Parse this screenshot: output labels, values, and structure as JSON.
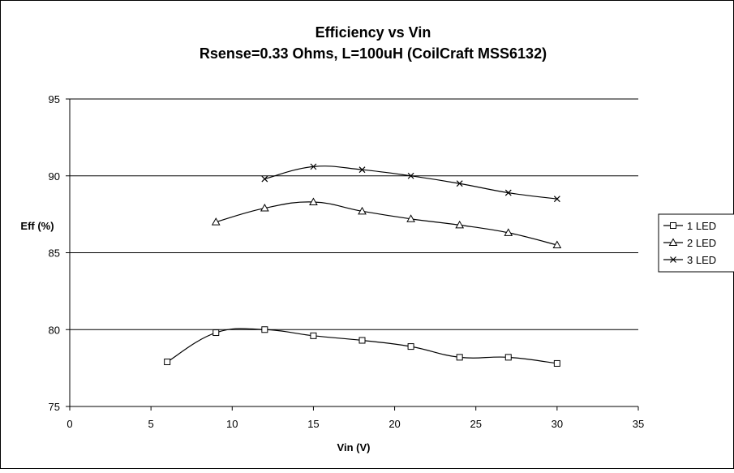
{
  "chart_data": {
    "type": "line",
    "title": "Efficiency vs Vin",
    "subtitle": "Rsense=0.33 Ohms, L=100uH (CoilCraft MSS6132)",
    "xlabel": "Vin (V)",
    "ylabel": "Eff (%)",
    "xlim": [
      0,
      35
    ],
    "ylim": [
      75,
      95
    ],
    "x_ticks": [
      0,
      5,
      10,
      15,
      20,
      25,
      30,
      35
    ],
    "y_ticks": [
      75,
      80,
      85,
      90,
      95
    ],
    "grid": "horizontal major gridlines",
    "legend_position": "right",
    "series": [
      {
        "name": "1 LED",
        "marker": "square",
        "x": [
          6,
          9,
          12,
          15,
          18,
          21,
          24,
          27,
          30
        ],
        "y": [
          77.9,
          79.8,
          80.0,
          79.6,
          79.3,
          78.9,
          78.2,
          78.2,
          77.8
        ]
      },
      {
        "name": "2 LED",
        "marker": "triangle",
        "x": [
          9,
          12,
          15,
          18,
          21,
          24,
          27,
          30
        ],
        "y": [
          87.0,
          87.9,
          88.3,
          87.7,
          87.2,
          86.8,
          86.3,
          85.5
        ]
      },
      {
        "name": "3 LED",
        "marker": "x",
        "x": [
          12,
          15,
          18,
          21,
          24,
          27,
          30
        ],
        "y": [
          89.8,
          90.6,
          90.4,
          90.0,
          89.5,
          88.9,
          88.5
        ]
      }
    ],
    "line_color": "#000000"
  }
}
